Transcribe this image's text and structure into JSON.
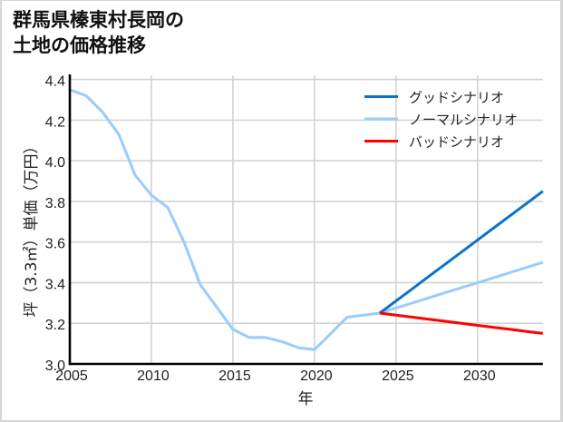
{
  "title_lines": [
    "群馬県榛東村長岡の",
    "土地の価格推移"
  ],
  "chart_data": {
    "type": "line",
    "title": "群馬県榛東村長岡の土地の価格推移",
    "xlabel": "年",
    "ylabel": "坪（3.3㎡）単価（万円）",
    "xlim": [
      2005,
      2034
    ],
    "ylim": [
      3.0,
      4.425
    ],
    "grid": true,
    "legend_position": "upper right",
    "x_ticks": [
      2005,
      2010,
      2015,
      2020,
      2025,
      2030
    ],
    "x_tick_labels": [
      "2005",
      "2010",
      "2015",
      "2020",
      "2025",
      "2030"
    ],
    "y_ticks": [
      3.0,
      3.2,
      3.4,
      3.6,
      3.8,
      4.0,
      4.2,
      4.4
    ],
    "y_tick_labels": [
      "3.0",
      "3.2",
      "3.4",
      "3.6",
      "3.8",
      "4.0",
      "4.2",
      "4.4"
    ],
    "series": [
      {
        "name": "ノーマルシナリオ",
        "color": "#99ccff",
        "x": [
          2005,
          2006,
          2007,
          2008,
          2009,
          2010,
          2011,
          2012,
          2013,
          2014,
          2015,
          2016,
          2017,
          2018,
          2019,
          2020,
          2021,
          2022,
          2023,
          2024,
          2025,
          2026,
          2027,
          2028,
          2029,
          2030,
          2031,
          2032,
          2033,
          2034
        ],
        "values": [
          4.35,
          4.32,
          4.24,
          4.13,
          3.93,
          3.83,
          3.77,
          3.6,
          3.39,
          3.28,
          3.17,
          3.13,
          3.13,
          3.11,
          3.08,
          3.07,
          3.15,
          3.23,
          3.24,
          3.25,
          3.275,
          3.3,
          3.325,
          3.35,
          3.375,
          3.4,
          3.425,
          3.45,
          3.475,
          3.5
        ]
      },
      {
        "name": "グッドシナリオ",
        "color": "#0b74c8",
        "x": [
          2024,
          2025,
          2026,
          2027,
          2028,
          2029,
          2030,
          2031,
          2032,
          2033,
          2034
        ],
        "values": [
          3.25,
          3.31,
          3.37,
          3.43,
          3.49,
          3.55,
          3.61,
          3.67,
          3.73,
          3.79,
          3.85
        ]
      },
      {
        "name": "バッドシナリオ",
        "color": "#ff0000",
        "x": [
          2024,
          2025,
          2026,
          2027,
          2028,
          2029,
          2030,
          2031,
          2032,
          2033,
          2034
        ],
        "values": [
          3.25,
          3.24,
          3.23,
          3.22,
          3.21,
          3.2,
          3.19,
          3.18,
          3.17,
          3.16,
          3.15
        ]
      }
    ],
    "legend": [
      {
        "label": "グッドシナリオ",
        "color": "#0b74c8"
      },
      {
        "label": "ノーマルシナリオ",
        "color": "#99ccff"
      },
      {
        "label": "バッドシナリオ",
        "color": "#ff0000"
      }
    ],
    "colors": {
      "grid": "#d3d3d3",
      "axis": "#000000",
      "frame": "#d6d6d6"
    }
  }
}
